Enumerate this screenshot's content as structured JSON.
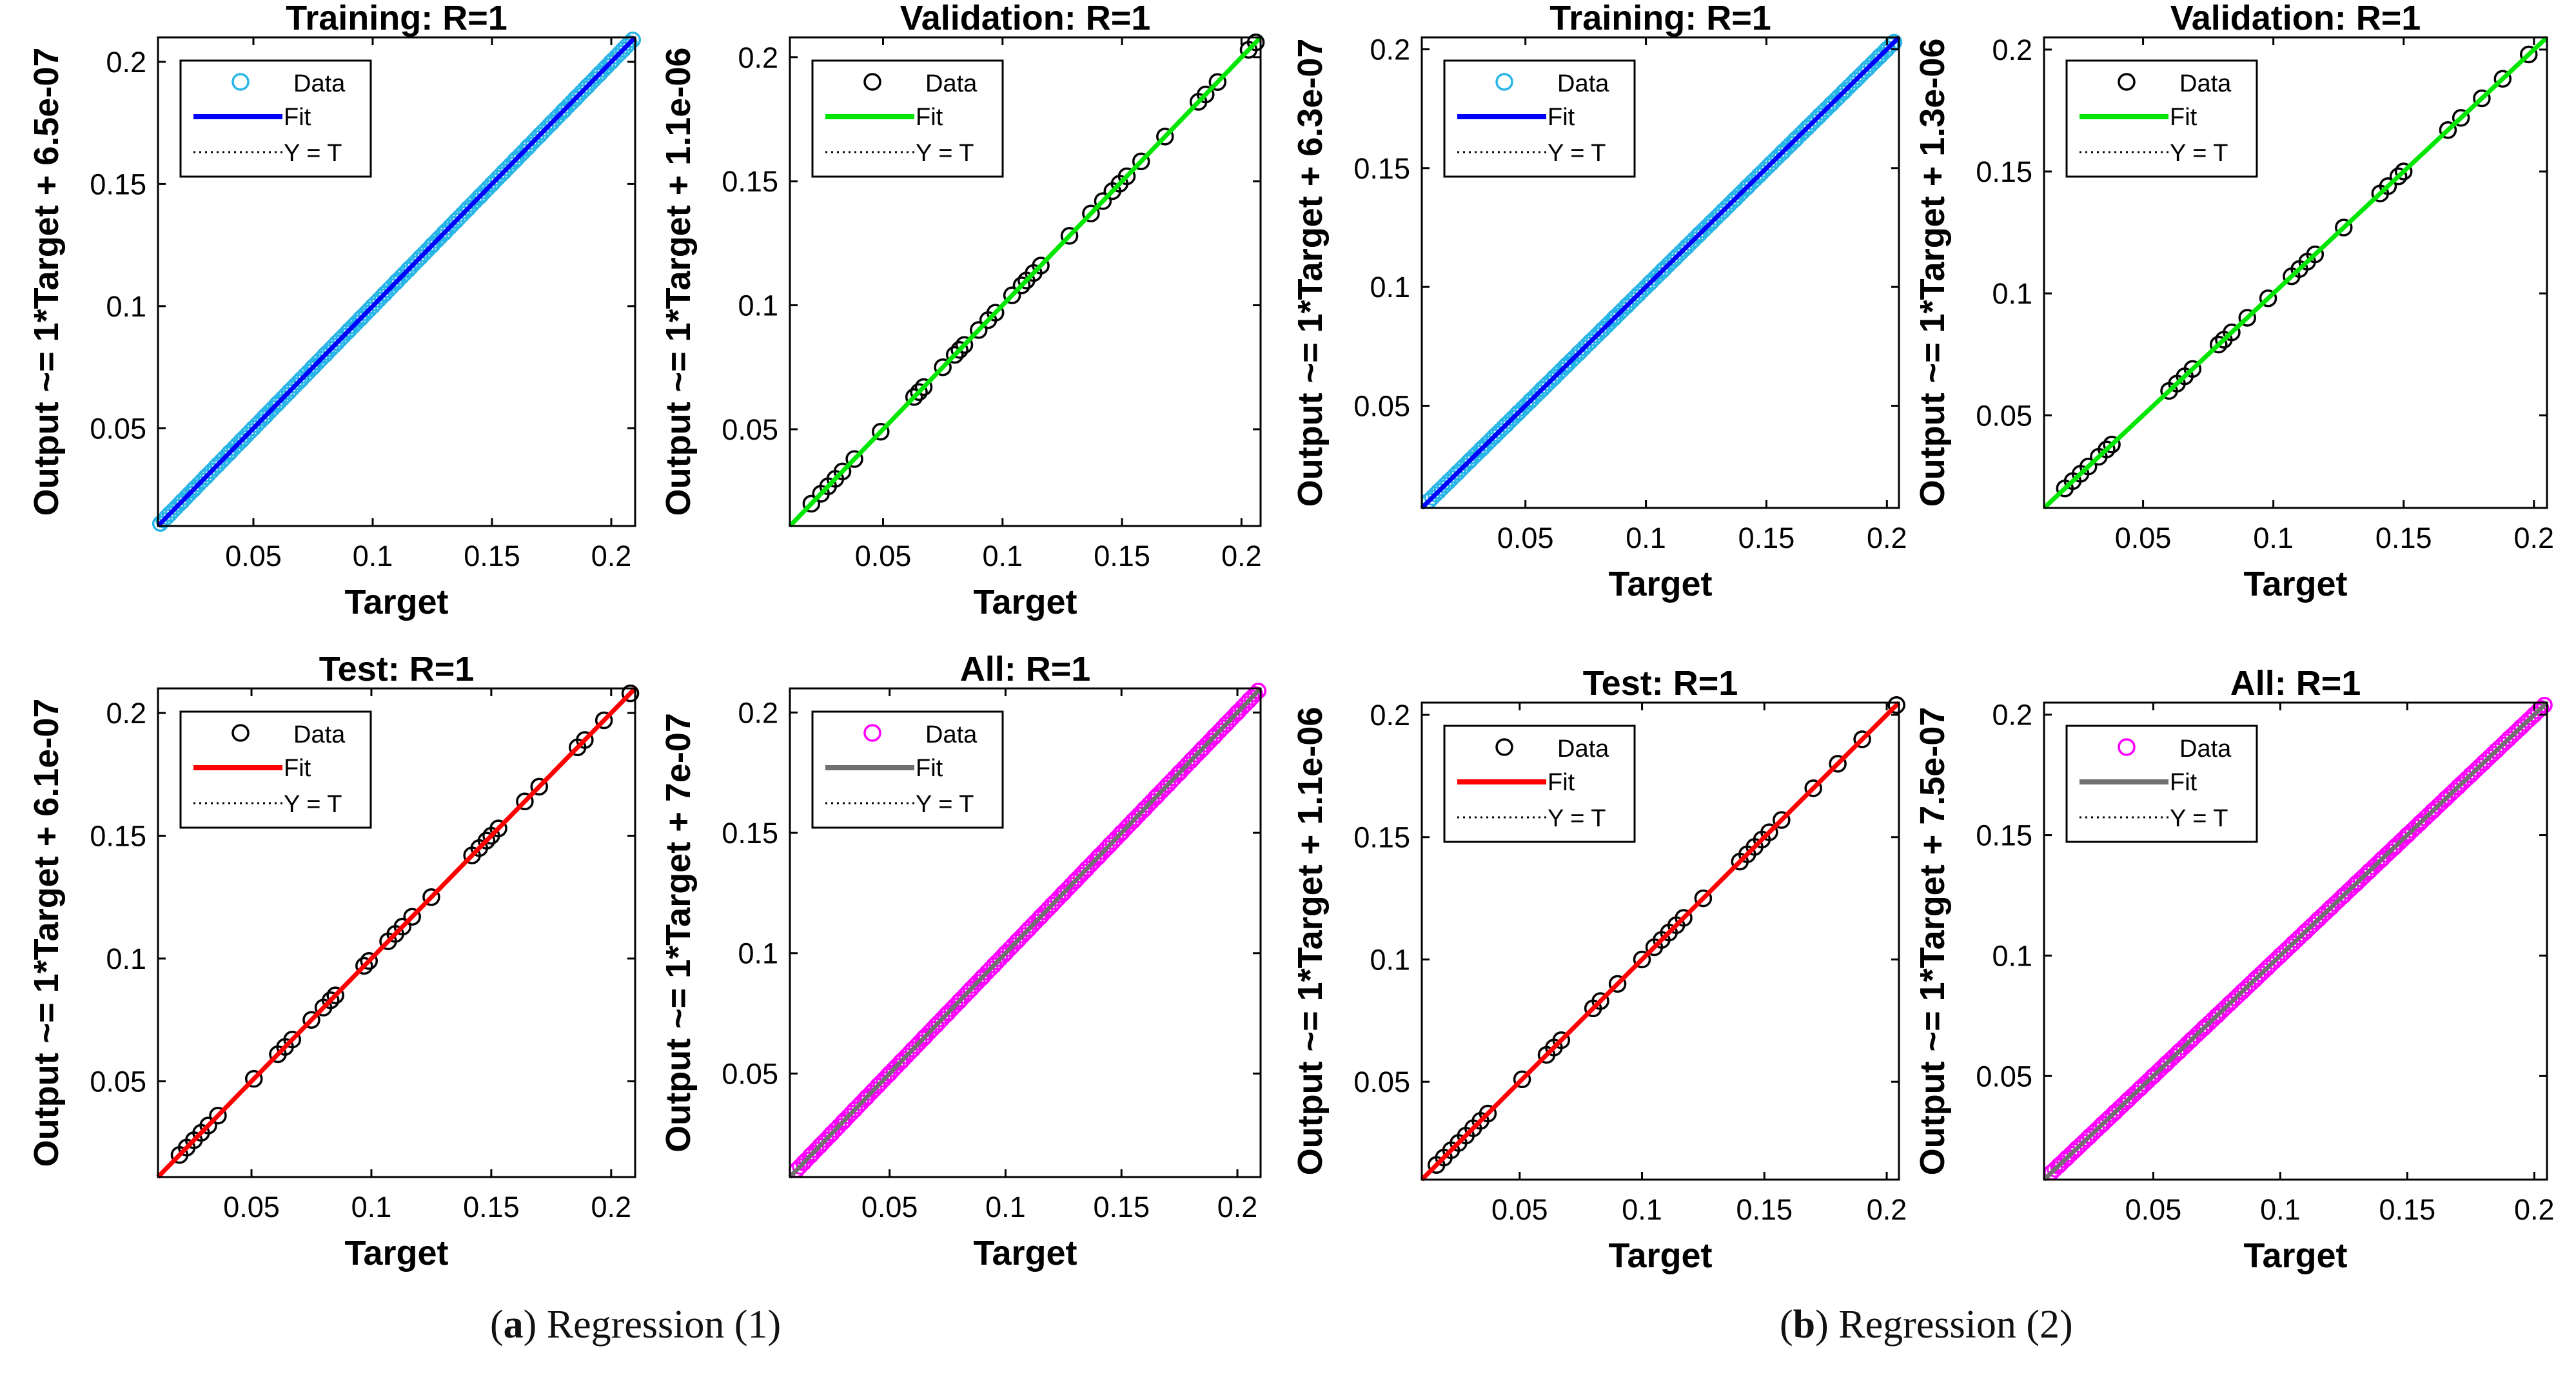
{
  "colors": {
    "axis": "#000000",
    "identity_line": "#000000",
    "legend_box": "#000000",
    "background": "#ffffff"
  },
  "captions": [
    {
      "letter": "a",
      "text": "Regression (1)"
    },
    {
      "letter": "b",
      "text": "Regression (2)"
    }
  ],
  "legend_labels": {
    "data": "Data",
    "fit": "Fit",
    "identity": "Y = T"
  },
  "chart_data": [
    {
      "type": "scatter",
      "group": "a",
      "title": "Training: R=1",
      "xlabel": "Target",
      "ylabel": "Output ~= 1*Target + 6.5e-07",
      "xlim": [
        0.01,
        0.21
      ],
      "ylim": [
        0.01,
        0.21
      ],
      "xticks": [
        0.05,
        0.1,
        0.15,
        0.2
      ],
      "xtick_labels": [
        "0.05",
        "0.1",
        "0.15",
        "0.2"
      ],
      "yticks": [
        0.05,
        0.1,
        0.15,
        0.2
      ],
      "ytick_labels": [
        "0.05",
        "0.1",
        "0.15",
        "0.2"
      ],
      "data_color": "#29b6e6",
      "fit_color": "#0000ff",
      "dense": true,
      "marker_filled": false,
      "fit": {
        "slope": 1,
        "intercept": 6.5e-07
      },
      "x": [
        0.011,
        0.015,
        0.02,
        0.025,
        0.03,
        0.035,
        0.04,
        0.045,
        0.05,
        0.055,
        0.06,
        0.065,
        0.07,
        0.075,
        0.08,
        0.085,
        0.09,
        0.095,
        0.1,
        0.105,
        0.11,
        0.115,
        0.12,
        0.125,
        0.13,
        0.135,
        0.14,
        0.145,
        0.15,
        0.155,
        0.16,
        0.165,
        0.17,
        0.175,
        0.18,
        0.185,
        0.19,
        0.195,
        0.2,
        0.205,
        0.209
      ],
      "y": [
        0.011,
        0.015,
        0.02,
        0.025,
        0.03,
        0.035,
        0.04,
        0.045,
        0.05,
        0.055,
        0.06,
        0.065,
        0.07,
        0.075,
        0.08,
        0.085,
        0.09,
        0.095,
        0.1,
        0.105,
        0.11,
        0.115,
        0.12,
        0.125,
        0.13,
        0.135,
        0.14,
        0.145,
        0.15,
        0.155,
        0.16,
        0.165,
        0.17,
        0.175,
        0.18,
        0.185,
        0.19,
        0.195,
        0.2,
        0.205,
        0.209
      ]
    },
    {
      "type": "scatter",
      "group": "a",
      "title": "Validation: R=1",
      "xlabel": "Target",
      "ylabel": "Output ~= 1*Target + 1.1e-06",
      "xlim": [
        0.011,
        0.208
      ],
      "ylim": [
        0.011,
        0.208
      ],
      "xticks": [
        0.05,
        0.1,
        0.15,
        0.2
      ],
      "xtick_labels": [
        "0.05",
        "0.1",
        "0.15",
        "0.2"
      ],
      "yticks": [
        0.05,
        0.1,
        0.15,
        0.2
      ],
      "ytick_labels": [
        "0.05",
        "0.1",
        "0.15",
        "0.2"
      ],
      "data_color": "#000000",
      "fit_color": "#00e600",
      "dense": false,
      "marker_filled": false,
      "fit": {
        "slope": 1,
        "intercept": 1.1e-06
      },
      "x": [
        0.02,
        0.024,
        0.027,
        0.03,
        0.033,
        0.038,
        0.049,
        0.063,
        0.065,
        0.067,
        0.075,
        0.08,
        0.082,
        0.084,
        0.09,
        0.094,
        0.097,
        0.104,
        0.108,
        0.11,
        0.113,
        0.116,
        0.128,
        0.137,
        0.142,
        0.146,
        0.149,
        0.152,
        0.158,
        0.168,
        0.182,
        0.185,
        0.19,
        0.203,
        0.206
      ],
      "y": [
        0.02,
        0.024,
        0.027,
        0.03,
        0.033,
        0.038,
        0.049,
        0.063,
        0.065,
        0.067,
        0.075,
        0.08,
        0.082,
        0.084,
        0.09,
        0.094,
        0.097,
        0.104,
        0.108,
        0.11,
        0.113,
        0.116,
        0.128,
        0.137,
        0.142,
        0.146,
        0.149,
        0.152,
        0.158,
        0.168,
        0.182,
        0.185,
        0.19,
        0.203,
        0.206
      ]
    },
    {
      "type": "scatter",
      "group": "a",
      "title": "Test: R=1",
      "xlabel": "Target",
      "ylabel": "Output ~= 1*Target + 6.1e-07",
      "xlim": [
        0.011,
        0.21
      ],
      "ylim": [
        0.011,
        0.21
      ],
      "xticks": [
        0.05,
        0.1,
        0.15,
        0.2
      ],
      "xtick_labels": [
        "0.05",
        "0.1",
        "0.15",
        "0.2"
      ],
      "yticks": [
        0.05,
        0.1,
        0.15,
        0.2
      ],
      "ytick_labels": [
        "0.05",
        "0.1",
        "0.15",
        "0.2"
      ],
      "data_color": "#000000",
      "fit_color": "#ff0000",
      "dense": false,
      "marker_filled": false,
      "fit": {
        "slope": 1,
        "intercept": 6.1e-07
      },
      "x": [
        0.02,
        0.023,
        0.026,
        0.029,
        0.032,
        0.036,
        0.051,
        0.061,
        0.064,
        0.067,
        0.075,
        0.08,
        0.083,
        0.085,
        0.097,
        0.099,
        0.107,
        0.11,
        0.113,
        0.117,
        0.125,
        0.142,
        0.145,
        0.148,
        0.15,
        0.153,
        0.164,
        0.17,
        0.186,
        0.189,
        0.197,
        0.208
      ],
      "y": [
        0.02,
        0.023,
        0.026,
        0.029,
        0.032,
        0.036,
        0.051,
        0.061,
        0.064,
        0.067,
        0.075,
        0.08,
        0.083,
        0.085,
        0.097,
        0.099,
        0.107,
        0.11,
        0.113,
        0.117,
        0.125,
        0.142,
        0.145,
        0.148,
        0.15,
        0.153,
        0.164,
        0.17,
        0.186,
        0.189,
        0.197,
        0.208
      ]
    },
    {
      "type": "scatter",
      "group": "a",
      "title": "All: R=1",
      "xlabel": "Target",
      "ylabel": "Output ~= 1*Target + 7e-07",
      "xlim": [
        0.007,
        0.21
      ],
      "ylim": [
        0.007,
        0.21
      ],
      "xticks": [
        0.05,
        0.1,
        0.15,
        0.2
      ],
      "xtick_labels": [
        "0.05",
        "0.1",
        "0.15",
        "0.2"
      ],
      "yticks": [
        0.05,
        0.1,
        0.15,
        0.2
      ],
      "ytick_labels": [
        "0.05",
        "0.1",
        "0.15",
        "0.2"
      ],
      "data_color": "#ff00ff",
      "fit_color": "#707070",
      "dense": true,
      "marker_filled": false,
      "fit": {
        "slope": 1,
        "intercept": 7e-07
      },
      "x": [
        0.01,
        0.013,
        0.016,
        0.02,
        0.025,
        0.03,
        0.035,
        0.04,
        0.045,
        0.05,
        0.055,
        0.06,
        0.065,
        0.07,
        0.075,
        0.08,
        0.085,
        0.09,
        0.095,
        0.1,
        0.105,
        0.11,
        0.115,
        0.12,
        0.125,
        0.13,
        0.135,
        0.14,
        0.145,
        0.15,
        0.155,
        0.16,
        0.165,
        0.17,
        0.175,
        0.18,
        0.185,
        0.19,
        0.195,
        0.2,
        0.205,
        0.209
      ],
      "y": [
        0.01,
        0.013,
        0.016,
        0.02,
        0.025,
        0.03,
        0.035,
        0.04,
        0.045,
        0.05,
        0.055,
        0.06,
        0.065,
        0.07,
        0.075,
        0.08,
        0.085,
        0.09,
        0.095,
        0.1,
        0.105,
        0.11,
        0.115,
        0.12,
        0.125,
        0.13,
        0.135,
        0.14,
        0.145,
        0.15,
        0.155,
        0.16,
        0.165,
        0.17,
        0.175,
        0.18,
        0.185,
        0.19,
        0.195,
        0.2,
        0.205,
        0.209
      ]
    },
    {
      "type": "scatter",
      "group": "b",
      "title": "Training: R=1",
      "xlabel": "Target",
      "ylabel": "Output ~= 1*Target + 6.3e-07",
      "xlim": [
        0.007,
        0.205
      ],
      "ylim": [
        0.007,
        0.205
      ],
      "xticks": [
        0.05,
        0.1,
        0.15,
        0.2
      ],
      "xtick_labels": [
        "0.05",
        "0.1",
        "0.15",
        "0.2"
      ],
      "yticks": [
        0.05,
        0.1,
        0.15,
        0.2
      ],
      "ytick_labels": [
        "0.05",
        "0.1",
        "0.15",
        "0.2"
      ],
      "data_color": "#29b6e6",
      "fit_color": "#0000ff",
      "dense": true,
      "marker_filled": false,
      "fit": {
        "slope": 1,
        "intercept": 6.3e-07
      },
      "x": [
        0.01,
        0.014,
        0.018,
        0.022,
        0.027,
        0.032,
        0.037,
        0.042,
        0.047,
        0.052,
        0.057,
        0.062,
        0.067,
        0.072,
        0.077,
        0.082,
        0.087,
        0.092,
        0.097,
        0.102,
        0.107,
        0.112,
        0.117,
        0.122,
        0.127,
        0.132,
        0.137,
        0.142,
        0.147,
        0.152,
        0.157,
        0.162,
        0.167,
        0.172,
        0.177,
        0.182,
        0.187,
        0.192,
        0.197,
        0.2,
        0.203
      ],
      "y": [
        0.01,
        0.014,
        0.018,
        0.022,
        0.027,
        0.032,
        0.037,
        0.042,
        0.047,
        0.052,
        0.057,
        0.062,
        0.067,
        0.072,
        0.077,
        0.082,
        0.087,
        0.092,
        0.097,
        0.102,
        0.107,
        0.112,
        0.117,
        0.122,
        0.127,
        0.132,
        0.137,
        0.142,
        0.147,
        0.152,
        0.157,
        0.162,
        0.167,
        0.172,
        0.177,
        0.182,
        0.187,
        0.192,
        0.197,
        0.2,
        0.203
      ]
    },
    {
      "type": "scatter",
      "group": "b",
      "title": "Validation: R=1",
      "xlabel": "Target",
      "ylabel": "Output ~= 1*Target + 1.3e-06",
      "xlim": [
        0.012,
        0.205
      ],
      "ylim": [
        0.012,
        0.205
      ],
      "xticks": [
        0.05,
        0.1,
        0.15,
        0.2
      ],
      "xtick_labels": [
        "0.05",
        "0.1",
        "0.15",
        "0.2"
      ],
      "yticks": [
        0.05,
        0.1,
        0.15,
        0.2
      ],
      "ytick_labels": [
        "0.05",
        "0.1",
        "0.15",
        "0.2"
      ],
      "data_color": "#000000",
      "fit_color": "#00e600",
      "dense": false,
      "marker_filled": false,
      "fit": {
        "slope": 1,
        "intercept": 1.3e-06
      },
      "x": [
        0.02,
        0.023,
        0.026,
        0.029,
        0.033,
        0.036,
        0.038,
        0.06,
        0.063,
        0.066,
        0.069,
        0.079,
        0.081,
        0.084,
        0.09,
        0.098,
        0.107,
        0.11,
        0.113,
        0.116,
        0.127,
        0.141,
        0.144,
        0.148,
        0.15,
        0.167,
        0.172,
        0.18,
        0.188,
        0.198
      ],
      "y": [
        0.02,
        0.023,
        0.026,
        0.029,
        0.033,
        0.036,
        0.038,
        0.06,
        0.063,
        0.066,
        0.069,
        0.079,
        0.081,
        0.084,
        0.09,
        0.098,
        0.107,
        0.11,
        0.113,
        0.116,
        0.127,
        0.141,
        0.144,
        0.148,
        0.15,
        0.167,
        0.172,
        0.18,
        0.188,
        0.198
      ]
    },
    {
      "type": "scatter",
      "group": "b",
      "title": "Test: R=1",
      "xlabel": "Target",
      "ylabel": "Output ~= 1*Target + 1.1e-06",
      "xlim": [
        0.01,
        0.205
      ],
      "ylim": [
        0.01,
        0.205
      ],
      "xticks": [
        0.05,
        0.1,
        0.15,
        0.2
      ],
      "xtick_labels": [
        "0.05",
        "0.1",
        "0.15",
        "0.2"
      ],
      "yticks": [
        0.05,
        0.1,
        0.15,
        0.2
      ],
      "ytick_labels": [
        "0.05",
        "0.1",
        "0.15",
        "0.2"
      ],
      "data_color": "#000000",
      "fit_color": "#ff0000",
      "dense": false,
      "marker_filled": false,
      "fit": {
        "slope": 1,
        "intercept": 1.1e-06
      },
      "x": [
        0.016,
        0.019,
        0.022,
        0.025,
        0.028,
        0.031,
        0.034,
        0.037,
        0.051,
        0.061,
        0.064,
        0.067,
        0.08,
        0.083,
        0.09,
        0.1,
        0.105,
        0.108,
        0.111,
        0.114,
        0.117,
        0.125,
        0.14,
        0.143,
        0.146,
        0.149,
        0.152,
        0.157,
        0.17,
        0.18,
        0.19,
        0.204
      ],
      "y": [
        0.016,
        0.019,
        0.022,
        0.025,
        0.028,
        0.031,
        0.034,
        0.037,
        0.051,
        0.061,
        0.064,
        0.067,
        0.08,
        0.083,
        0.09,
        0.1,
        0.105,
        0.108,
        0.111,
        0.114,
        0.117,
        0.125,
        0.14,
        0.143,
        0.146,
        0.149,
        0.152,
        0.157,
        0.17,
        0.18,
        0.19,
        0.204
      ]
    },
    {
      "type": "scatter",
      "group": "b",
      "title": "All: R=1",
      "xlabel": "Target",
      "ylabel": "Output ~= 1*Target + 7.5e-07",
      "xlim": [
        0.007,
        0.205
      ],
      "ylim": [
        0.007,
        0.205
      ],
      "xticks": [
        0.05,
        0.1,
        0.15,
        0.2
      ],
      "xtick_labels": [
        "0.05",
        "0.1",
        "0.15",
        "0.2"
      ],
      "yticks": [
        0.05,
        0.1,
        0.15,
        0.2
      ],
      "ytick_labels": [
        "0.05",
        "0.1",
        "0.15",
        "0.2"
      ],
      "data_color": "#ff00ff",
      "fit_color": "#707070",
      "dense": true,
      "marker_filled": false,
      "fit": {
        "slope": 1,
        "intercept": 7.5e-07
      },
      "x": [
        0.01,
        0.013,
        0.016,
        0.02,
        0.025,
        0.03,
        0.035,
        0.04,
        0.045,
        0.05,
        0.055,
        0.06,
        0.065,
        0.07,
        0.075,
        0.08,
        0.085,
        0.09,
        0.095,
        0.1,
        0.105,
        0.11,
        0.115,
        0.12,
        0.125,
        0.13,
        0.135,
        0.14,
        0.145,
        0.15,
        0.155,
        0.16,
        0.165,
        0.17,
        0.175,
        0.18,
        0.185,
        0.19,
        0.195,
        0.2,
        0.204
      ],
      "y": [
        0.01,
        0.013,
        0.016,
        0.02,
        0.025,
        0.03,
        0.035,
        0.04,
        0.045,
        0.05,
        0.055,
        0.06,
        0.065,
        0.07,
        0.075,
        0.08,
        0.085,
        0.09,
        0.095,
        0.1,
        0.105,
        0.11,
        0.115,
        0.12,
        0.125,
        0.13,
        0.135,
        0.14,
        0.145,
        0.15,
        0.155,
        0.16,
        0.165,
        0.17,
        0.175,
        0.18,
        0.185,
        0.19,
        0.195,
        0.2,
        0.204
      ]
    }
  ]
}
